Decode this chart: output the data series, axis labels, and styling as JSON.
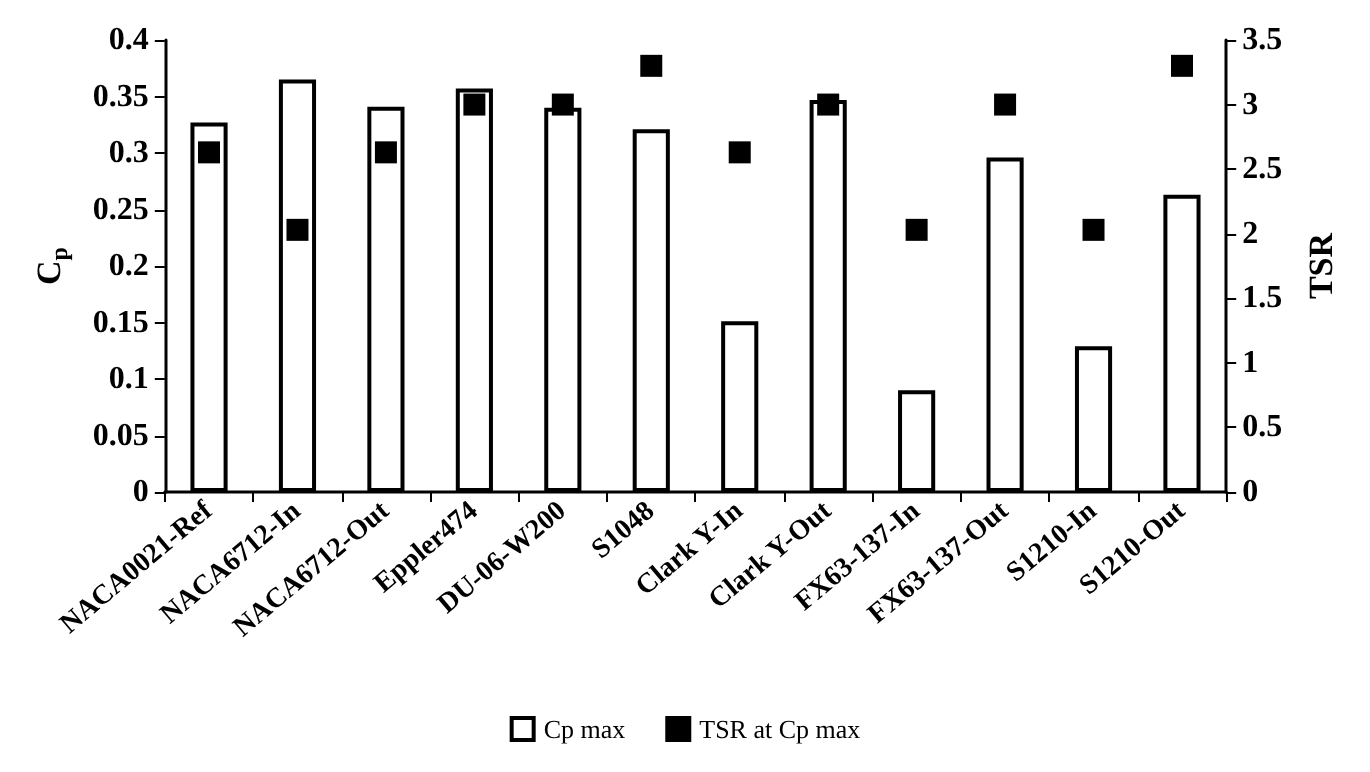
{
  "chart_data": {
    "type": "bar",
    "categories": [
      "NACA0021-Ref",
      "NACA6712-In",
      "NACA6712-Out",
      "Eppler474",
      "DU-06-W200",
      "S1048",
      "Clark Y-In",
      "Clark Y-Out",
      "FX63-137-In",
      "FX63-137-Out",
      "S1210-In",
      "S1210-Out"
    ],
    "series": [
      {
        "name": "Cp max",
        "color": "#ffffff",
        "values": [
          0.327,
          0.365,
          0.341,
          0.357,
          0.34,
          0.321,
          0.151,
          0.347,
          0.09,
          0.296,
          0.129,
          0.263
        ]
      },
      {
        "name": "TSR at Cp max",
        "type": "scatter",
        "axis": "y2",
        "color": "#000000",
        "values": [
          2.63,
          2.03,
          2.63,
          3.0,
          3.0,
          3.3,
          2.63,
          3.0,
          2.03,
          3.0,
          2.03,
          3.3
        ]
      }
    ],
    "ylabel": "C$_{p}$",
    "y2label": "TSR",
    "ylim": [
      0,
      0.4
    ],
    "yticks": [
      0,
      0.05,
      0.1,
      0.15,
      0.2,
      0.25,
      0.3,
      0.35,
      0.4
    ],
    "y2lim": [
      0,
      3.5
    ],
    "y2ticks": [
      0,
      0.5,
      1,
      1.5,
      2,
      2.5,
      3,
      3.5
    ],
    "legend": "bottom",
    "marker": "square",
    "grid": false
  }
}
